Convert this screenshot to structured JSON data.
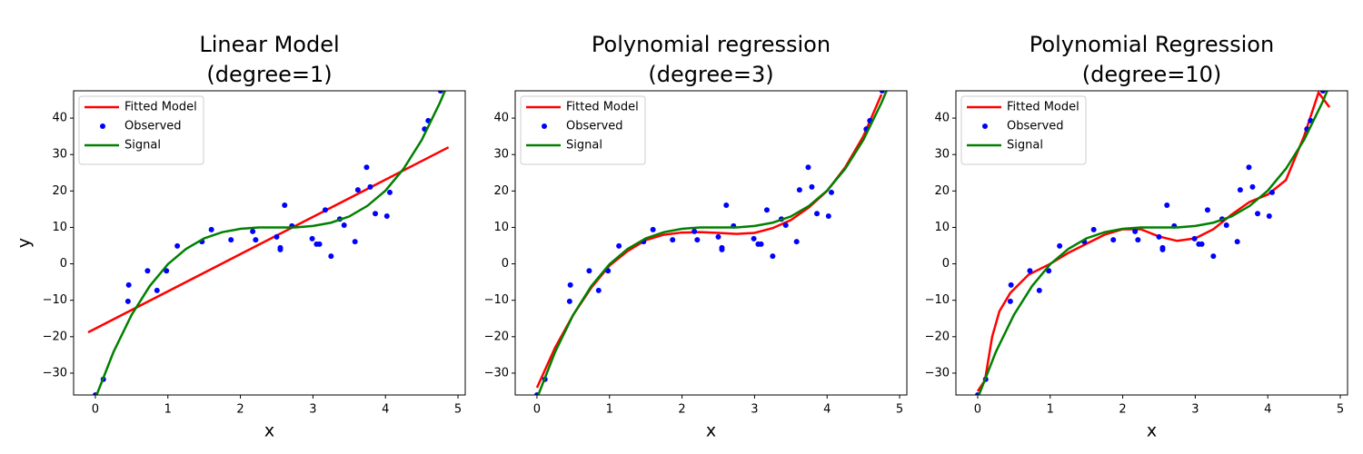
{
  "chart_data": [
    {
      "type": "line",
      "title": [
        "Linear Model",
        "(degree=1)"
      ],
      "x_label": "x",
      "y_label": "y",
      "xlim": [
        -0.3,
        5.1
      ],
      "ylim": [
        -36,
        47.5
      ],
      "xticks": [
        0,
        1,
        2,
        3,
        4,
        5
      ],
      "yticks": [
        {
          "value": -30,
          "label": "−30"
        },
        {
          "value": -20,
          "label": "−20"
        },
        {
          "value": -10,
          "label": "−10"
        },
        0,
        10,
        20,
        30,
        40
      ],
      "legend": "upper left",
      "series": [
        {
          "name": "Fitted Model",
          "color": "#ff0000",
          "type": "line",
          "x": [
            -0.1,
            4.87
          ],
          "values": [
            -18.8,
            32
          ]
        },
        {
          "name": "Observed",
          "color": "#0000ff",
          "type": "scatter",
          "x": [
            0,
            0.11,
            0.46,
            0.45,
            0.72,
            0.85,
            0.98,
            1.13,
            1.47,
            1.6,
            1.87,
            2.17,
            2.21,
            2.5,
            2.55,
            2.55,
            2.61,
            2.71,
            2.99,
            3.05,
            3.09,
            3.17,
            3.25,
            3.37,
            3.43,
            3.58,
            3.62,
            3.74,
            3.79,
            3.86,
            4.02,
            4.06,
            4.54,
            4.59,
            4.76
          ],
          "values": [
            -36,
            -31.7,
            -5.8,
            -10.3,
            -1.9,
            -7.3,
            -1.9,
            4.9,
            6.1,
            9.4,
            6.6,
            8.9,
            6.6,
            7.4,
            4.4,
            3.9,
            16.1,
            10.4,
            6.9,
            5.4,
            5.4,
            14.8,
            2.1,
            12.3,
            10.6,
            6.1,
            20.3,
            26.5,
            21.1,
            13.8,
            13.1,
            19.6,
            37,
            39.3,
            47.5
          ]
        },
        {
          "name": "Signal",
          "color": "#008000",
          "type": "line",
          "x": [
            0,
            0.25,
            0.5,
            0.75,
            1,
            1.25,
            1.5,
            1.75,
            2,
            2.25,
            2.5,
            2.75,
            3,
            3.25,
            3.5,
            3.75,
            4,
            4.25,
            4.5,
            4.75,
            4.85
          ],
          "values": [
            -36.9,
            -24.2,
            -14,
            -6.1,
            -0.1,
            4.1,
            7,
            8.7,
            9.6,
            10,
            10,
            10,
            10.4,
            11.3,
            13,
            15.9,
            20.1,
            26.1,
            34,
            44.2,
            48.9
          ]
        }
      ]
    },
    {
      "type": "line",
      "title": [
        "Polynomial regression",
        "(degree=3)"
      ],
      "x_label": "x",
      "xlim": [
        -0.3,
        5.1
      ],
      "ylim": [
        -36,
        47.5
      ],
      "xticks": [
        0,
        1,
        2,
        3,
        4,
        5
      ],
      "yticks": [
        {
          "value": -30,
          "label": "−30"
        },
        {
          "value": -20,
          "label": "−20"
        },
        {
          "value": -10,
          "label": "−10"
        },
        0,
        10,
        20,
        30,
        40
      ],
      "legend": "upper left",
      "series": [
        {
          "name": "Fitted Model",
          "color": "#ff0000",
          "type": "line",
          "x": [
            0,
            0.25,
            0.5,
            0.75,
            1,
            1.25,
            1.5,
            1.75,
            2,
            2.25,
            2.5,
            2.75,
            3,
            3.25,
            3.5,
            3.75,
            4,
            4.25,
            4.5,
            4.75
          ],
          "values": [
            -34,
            -23,
            -14,
            -6.5,
            -0.5,
            3.5,
            6.5,
            8,
            8.6,
            8.7,
            8.5,
            8.2,
            8.5,
            9.8,
            12,
            15.5,
            20,
            26.5,
            35,
            46.5
          ]
        },
        {
          "name": "Observed",
          "color": "#0000ff",
          "type": "scatter",
          "x": [
            0,
            0.11,
            0.46,
            0.45,
            0.72,
            0.85,
            0.98,
            1.13,
            1.47,
            1.6,
            1.87,
            2.17,
            2.21,
            2.5,
            2.55,
            2.55,
            2.61,
            2.71,
            2.99,
            3.05,
            3.09,
            3.17,
            3.25,
            3.37,
            3.43,
            3.58,
            3.62,
            3.74,
            3.79,
            3.86,
            4.02,
            4.06,
            4.54,
            4.59,
            4.76
          ],
          "values": [
            -36,
            -31.7,
            -5.8,
            -10.3,
            -1.9,
            -7.3,
            -1.9,
            4.9,
            6.1,
            9.4,
            6.6,
            8.9,
            6.6,
            7.4,
            4.4,
            3.9,
            16.1,
            10.4,
            6.9,
            5.4,
            5.4,
            14.8,
            2.1,
            12.3,
            10.6,
            6.1,
            20.3,
            26.5,
            21.1,
            13.8,
            13.1,
            19.6,
            37,
            39.3,
            47.5
          ]
        },
        {
          "name": "Signal",
          "color": "#008000",
          "type": "line",
          "x": [
            0,
            0.25,
            0.5,
            0.75,
            1,
            1.25,
            1.5,
            1.75,
            2,
            2.25,
            2.5,
            2.75,
            3,
            3.25,
            3.5,
            3.75,
            4,
            4.25,
            4.5,
            4.75,
            4.85
          ],
          "values": [
            -36.9,
            -24.2,
            -14,
            -6.1,
            -0.1,
            4.1,
            7,
            8.7,
            9.6,
            10,
            10,
            10,
            10.4,
            11.3,
            13,
            15.9,
            20.1,
            26.1,
            34,
            44.2,
            48.9
          ]
        }
      ]
    },
    {
      "type": "line",
      "title": [
        "Polynomial Regression",
        "(degree=10)"
      ],
      "x_label": "x",
      "xlim": [
        -0.3,
        5.1
      ],
      "ylim": [
        -36,
        47.5
      ],
      "xticks": [
        0,
        1,
        2,
        3,
        4,
        5
      ],
      "yticks": [
        {
          "value": -30,
          "label": "−30"
        },
        {
          "value": -20,
          "label": "−20"
        },
        {
          "value": -10,
          "label": "−10"
        },
        0,
        10,
        20,
        30,
        40
      ],
      "legend": "upper left",
      "series": [
        {
          "name": "Fitted Model",
          "color": "#ff0000",
          "type": "line",
          "x": [
            0,
            0.1,
            0.2,
            0.3,
            0.45,
            0.7,
            1,
            1.25,
            1.5,
            1.75,
            2,
            2.25,
            2.5,
            2.75,
            3,
            3.25,
            3.5,
            3.75,
            4,
            4.25,
            4.5,
            4.7,
            4.85
          ],
          "values": [
            -35,
            -32,
            -20,
            -13,
            -8,
            -3,
            0,
            3,
            5.5,
            8,
            9.5,
            9.5,
            7.5,
            6.3,
            7,
            9.5,
            13.5,
            17,
            19,
            23,
            35,
            47,
            43
          ]
        },
        {
          "name": "Observed",
          "color": "#0000ff",
          "type": "scatter",
          "x": [
            0,
            0.11,
            0.46,
            0.45,
            0.72,
            0.85,
            0.98,
            1.13,
            1.47,
            1.6,
            1.87,
            2.17,
            2.21,
            2.5,
            2.55,
            2.55,
            2.61,
            2.71,
            2.99,
            3.05,
            3.09,
            3.17,
            3.25,
            3.37,
            3.43,
            3.58,
            3.62,
            3.74,
            3.79,
            3.86,
            4.02,
            4.06,
            4.54,
            4.59,
            4.76
          ],
          "values": [
            -36,
            -31.7,
            -5.8,
            -10.3,
            -1.9,
            -7.3,
            -1.9,
            4.9,
            6.1,
            9.4,
            6.6,
            8.9,
            6.6,
            7.4,
            4.4,
            3.9,
            16.1,
            10.4,
            6.9,
            5.4,
            5.4,
            14.8,
            2.1,
            12.3,
            10.6,
            6.1,
            20.3,
            26.5,
            21.1,
            13.8,
            13.1,
            19.6,
            37,
            39.3,
            47.5
          ]
        },
        {
          "name": "Signal",
          "color": "#008000",
          "type": "line",
          "x": [
            0,
            0.25,
            0.5,
            0.75,
            1,
            1.25,
            1.5,
            1.75,
            2,
            2.25,
            2.5,
            2.75,
            3,
            3.25,
            3.5,
            3.75,
            4,
            4.25,
            4.5,
            4.75,
            4.85
          ],
          "values": [
            -36.9,
            -24.2,
            -14,
            -6.1,
            -0.1,
            4.1,
            7,
            8.7,
            9.6,
            10,
            10,
            10,
            10.4,
            11.3,
            13,
            15.9,
            20.1,
            26.1,
            34,
            44.2,
            48.9
          ]
        }
      ]
    }
  ]
}
